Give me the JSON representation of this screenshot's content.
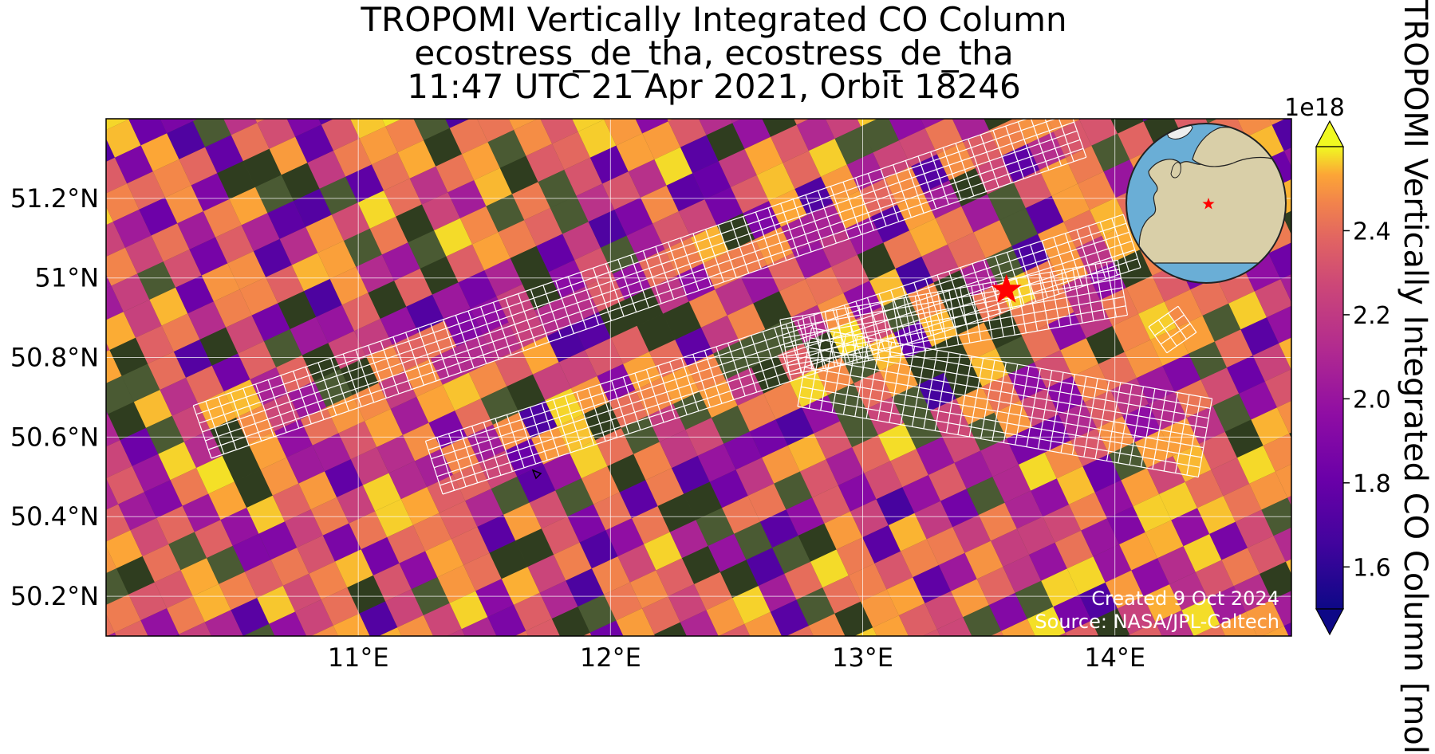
{
  "title": {
    "line1": "TROPOMI Vertically Integrated CO Column",
    "line2": "ecostress_de_tha, ecostress_de_tha",
    "line3": "11:47 UTC 21 Apr 2021, Orbit 18246"
  },
  "map": {
    "lon_range": [
      10.0,
      14.7
    ],
    "lat_range": [
      50.1,
      51.4
    ],
    "lon_ticks": [
      {
        "value": 11,
        "label": "11°E"
      },
      {
        "value": 12,
        "label": "12°E"
      },
      {
        "value": 13,
        "label": "13°E"
      },
      {
        "value": 14,
        "label": "14°E"
      }
    ],
    "lat_ticks": [
      {
        "value": 51.2,
        "label": "51.2°N"
      },
      {
        "value": 51.0,
        "label": "51°N"
      },
      {
        "value": 50.8,
        "label": "50.8°N"
      },
      {
        "value": 50.6,
        "label": "50.6°N"
      },
      {
        "value": 50.4,
        "label": "50.4°N"
      },
      {
        "value": 50.2,
        "label": "50.2°N"
      }
    ],
    "gridlines": true,
    "basemap": "satellite imagery",
    "target_marker": {
      "lon": 13.57,
      "lat": 50.97,
      "symbol": "red-star"
    },
    "footer": {
      "created": "Created 9 Oct 2024",
      "source": "Source: NASA/JPL-Caltech"
    }
  },
  "colorbar": {
    "colormap": "plasma",
    "range": [
      1.5,
      2.6
    ],
    "exponent_label": "1e18",
    "ticks": [
      {
        "value": 1.6,
        "label": "1.6"
      },
      {
        "value": 1.8,
        "label": "1.8"
      },
      {
        "value": 2.0,
        "label": "2.0"
      },
      {
        "value": 2.2,
        "label": "2.2"
      },
      {
        "value": 2.4,
        "label": "2.4"
      }
    ],
    "label": "TROPOMI Vertically Integrated CO Column [mol",
    "extend": "both"
  },
  "inset_globe": {
    "marker": "red-star",
    "region": "Europe"
  },
  "colors": {
    "grid_line": "#ffffff",
    "swath_outline": "#ffffff",
    "marker": "#ff0000",
    "footer_text": "#ffffff",
    "ocean": "#6aaed6",
    "land": "#e8dcc0"
  }
}
